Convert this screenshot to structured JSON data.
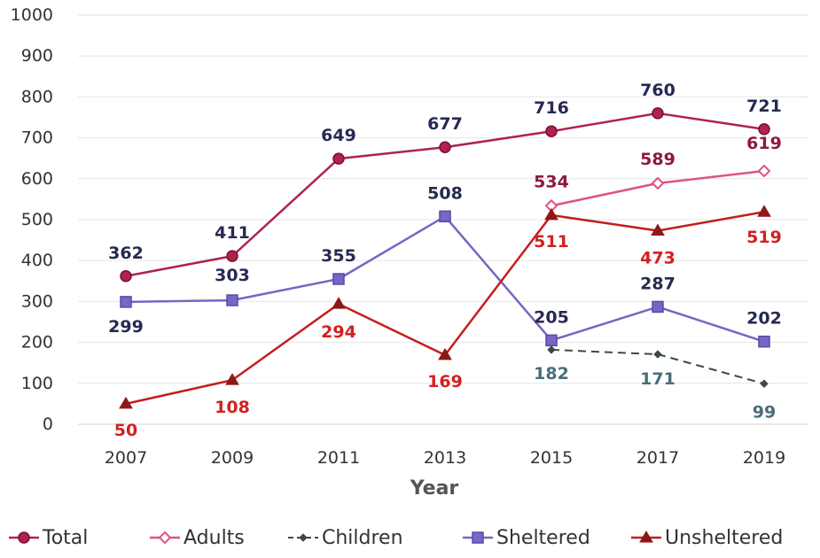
{
  "chart_data": {
    "type": "line",
    "title": "",
    "xlabel": "Year",
    "ylabel": "",
    "ylim": [
      0,
      1000
    ],
    "yticks": [
      "0",
      "100",
      "200",
      "300",
      "400",
      "500",
      "600",
      "700",
      "800",
      "900",
      "1000"
    ],
    "categories": [
      "2007",
      "2009",
      "2011",
      "2013",
      "2015",
      "2017",
      "2019"
    ],
    "grid": true,
    "legend_position": "bottom",
    "series": [
      {
        "name": "Total",
        "color": "#b0224e",
        "marker": "circle",
        "dash": false,
        "label_color": "#262a52",
        "values": [
          362,
          411,
          649,
          677,
          716,
          760,
          721
        ],
        "labels": [
          "362",
          "411",
          "649",
          "677",
          "716",
          "760",
          "721"
        ]
      },
      {
        "name": "Adults",
        "color": "#e0508a",
        "marker": "diamond",
        "dash": false,
        "label_color": "#8c1846",
        "values": [
          null,
          null,
          null,
          null,
          534,
          589,
          619
        ],
        "labels": [
          "",
          "",
          "",
          "",
          "534",
          "589",
          "619"
        ]
      },
      {
        "name": "Children",
        "color": "#3b4a45",
        "marker": "smalldiamond",
        "dash": true,
        "label_color": "#4a6d78",
        "values": [
          null,
          null,
          null,
          null,
          182,
          171,
          99
        ],
        "labels": [
          "",
          "",
          "",
          "",
          "182",
          "171",
          "99"
        ]
      },
      {
        "name": "Sheltered",
        "color": "#7766c4",
        "marker": "square",
        "dash": false,
        "label_color": "#262a52",
        "values": [
          299,
          303,
          355,
          508,
          205,
          287,
          202
        ],
        "labels": [
          "299",
          "303",
          "355",
          "508",
          "205",
          "287",
          "202"
        ]
      },
      {
        "name": "Unsheltered",
        "color": "#c41e1e",
        "marker": "triangle",
        "dash": false,
        "label_color": "#d42020",
        "values": [
          50,
          108,
          294,
          169,
          511,
          473,
          519
        ],
        "labels": [
          "50",
          "108",
          "294",
          "169",
          "511",
          "473",
          "519"
        ]
      }
    ]
  }
}
